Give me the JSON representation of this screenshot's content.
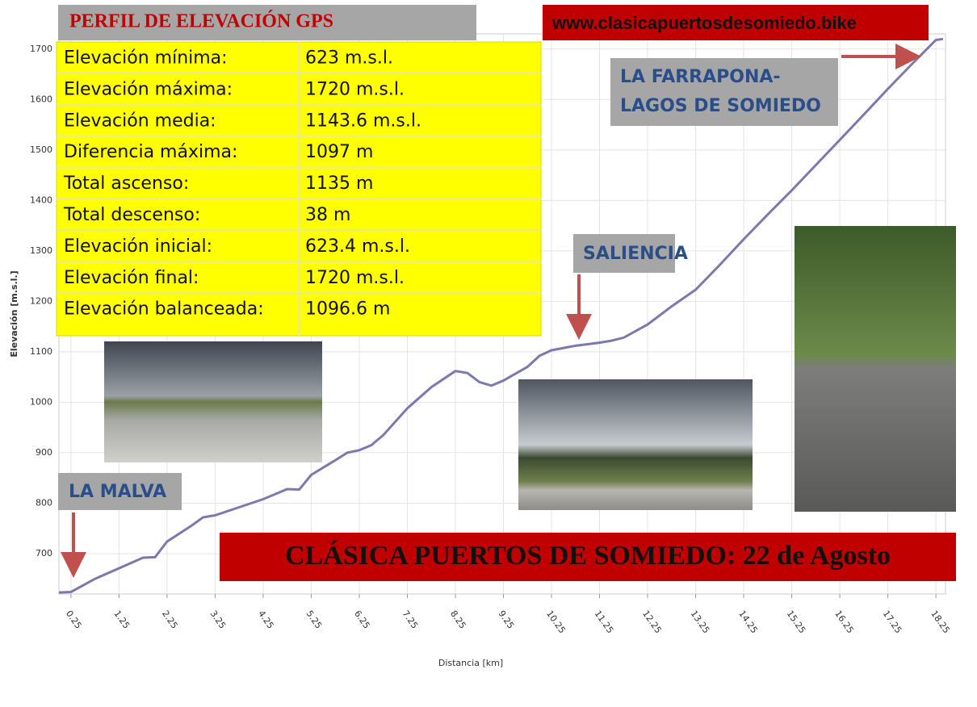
{
  "chart_data": {
    "type": "line",
    "title": "PERFIL DE ELEVACIÓN GPS",
    "subtitle": "www.clasicapuertosdesomiedo.bike",
    "footer": "CLÁSICA PUERTOS DE SOMIEDO: 22 de Agosto",
    "xlabel": "Distancia [km]",
    "ylabel": "Elevación [m.s.l.]",
    "x": [
      0,
      0.25,
      0.75,
      1.25,
      1.75,
      2.0,
      2.25,
      2.75,
      3.0,
      3.25,
      3.75,
      4.25,
      4.75,
      5.0,
      5.25,
      5.75,
      6.0,
      6.25,
      6.5,
      6.75,
      7.25,
      7.75,
      8.25,
      8.5,
      8.75,
      9.0,
      9.25,
      9.75,
      10.0,
      10.25,
      10.75,
      11.25,
      11.5,
      11.75,
      12.25,
      12.75,
      13.25,
      13.75,
      14.25,
      14.75,
      15.25,
      15.75,
      16.25,
      16.75,
      17.25,
      17.75,
      18.25,
      18.4
    ],
    "values": [
      623,
      624,
      650,
      671,
      692,
      693,
      724,
      755,
      772,
      776,
      792,
      808,
      828,
      827,
      856,
      885,
      900,
      905,
      915,
      935,
      988,
      1030,
      1062,
      1058,
      1040,
      1033,
      1043,
      1070,
      1092,
      1103,
      1112,
      1118,
      1122,
      1128,
      1154,
      1190,
      1223,
      1272,
      1323,
      1372,
      1420,
      1470,
      1520,
      1570,
      1621,
      1670,
      1718,
      1720
    ],
    "color": "#7b79ad",
    "xlim": [
      0,
      18.45
    ],
    "xticks": [
      0.25,
      1.25,
      2.25,
      3.25,
      4.25,
      5.25,
      6.25,
      7.25,
      8.25,
      9.25,
      10.25,
      11.25,
      12.25,
      13.25,
      14.25,
      15.25,
      16.25,
      17.25,
      18.25
    ],
    "ylim": [
      620,
      1730
    ],
    "yticks": [
      700,
      800,
      900,
      1000,
      1100,
      1200,
      1300,
      1400,
      1500,
      1600,
      1700
    ],
    "grid": true,
    "annotations": [
      {
        "lines": [
          "LA MALVA"
        ]
      },
      {
        "lines": [
          "SALIENCIA"
        ]
      },
      {
        "lines": [
          "LA FARRAPONA-",
          "LAGOS DE SOMIEDO"
        ]
      }
    ]
  },
  "stats": {
    "rows": [
      [
        "Elevación mínima:",
        "623 m.s.l."
      ],
      [
        "Elevación máxima:",
        "1720 m.s.l."
      ],
      [
        "Elevación media:",
        "1143.6 m.s.l."
      ],
      [
        "Diferencia máxima:",
        "1097 m"
      ],
      [
        "Total ascenso:",
        "1135 m"
      ],
      [
        "Total descenso:",
        "38 m"
      ],
      [
        "Elevación inicial:",
        "623.4 m.s.l."
      ],
      [
        "Elevación final:",
        "1720 m.s.l."
      ],
      [
        "Elevación balanceada:",
        "1096.6 m"
      ]
    ]
  }
}
